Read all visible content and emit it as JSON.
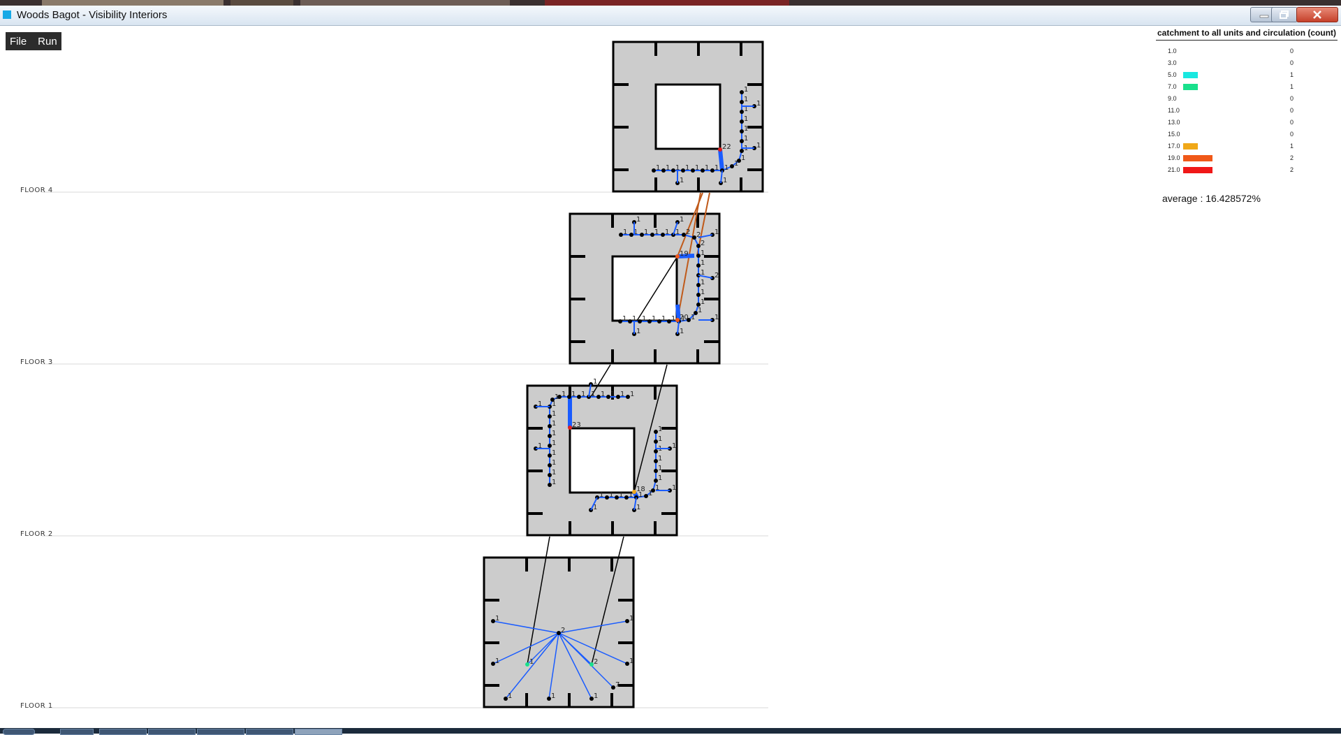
{
  "window": {
    "title": "Woods Bagot - Visibility Interiors",
    "buttons": {
      "minimize": "minimize-icon",
      "maximize": "maximize-icon",
      "close": "close-icon"
    }
  },
  "menu": {
    "items": [
      "File",
      "Run"
    ]
  },
  "floors": [
    {
      "label": "FLOOR 4"
    },
    {
      "label": "FLOOR 3"
    },
    {
      "label": "FLOOR 2"
    },
    {
      "label": "FLOOR 1"
    }
  ],
  "legend": {
    "title": "catchment to all units and circulation (count)",
    "rows": [
      {
        "value": "1.0",
        "color": "",
        "count": "0",
        "bar": 0
      },
      {
        "value": "3.0",
        "color": "",
        "count": "0",
        "bar": 0
      },
      {
        "value": "5.0",
        "color": "#19e8e0",
        "count": "1",
        "bar": 1
      },
      {
        "value": "7.0",
        "color": "#19e08c",
        "count": "1",
        "bar": 1
      },
      {
        "value": "9.0",
        "color": "",
        "count": "0",
        "bar": 0
      },
      {
        "value": "11.0",
        "color": "",
        "count": "0",
        "bar": 0
      },
      {
        "value": "13.0",
        "color": "",
        "count": "0",
        "bar": 0
      },
      {
        "value": "15.0",
        "color": "",
        "count": "0",
        "bar": 0
      },
      {
        "value": "17.0",
        "color": "#f0a818",
        "count": "1",
        "bar": 1
      },
      {
        "value": "19.0",
        "color": "#f05818",
        "count": "2",
        "bar": 2
      },
      {
        "value": "21.0",
        "color": "#f01818",
        "count": "2",
        "bar": 2
      }
    ]
  },
  "average": "average : 16.428572%",
  "nodes": {
    "floor4": {
      "hub": "22",
      "counts": [
        "1",
        "1",
        "1",
        "1",
        "1",
        "1",
        "1",
        "1",
        "1",
        "1",
        "1",
        "1",
        "1",
        "1",
        "1",
        "1",
        "1"
      ]
    },
    "floor3": {
      "hubs": [
        "19",
        "20"
      ],
      "counts": [
        "1",
        "1",
        "1",
        "1",
        "1",
        "1",
        "2",
        "2",
        "2",
        "1",
        "1",
        "1",
        "1",
        "1",
        "1",
        "1",
        "1",
        "1",
        "1",
        "1",
        "1"
      ]
    },
    "floor2": {
      "hubs": [
        "23",
        "18"
      ],
      "counts": [
        "1",
        "1",
        "1",
        "1",
        "1",
        "1",
        "1",
        "1",
        "1",
        "1",
        "1",
        "1",
        "1",
        "1",
        "1",
        "1",
        "1",
        "1",
        "1",
        "1",
        "1"
      ]
    },
    "floor1": {
      "hub": "2",
      "counts": [
        "1",
        "1",
        "1",
        "1",
        "1",
        "2",
        "1",
        "1",
        "1",
        "7"
      ]
    }
  },
  "colors": {
    "path_blue": "#1a5cff",
    "floor_fill": "#cccccc",
    "link_orange": "#c05a1a",
    "link_black": "#000000"
  }
}
